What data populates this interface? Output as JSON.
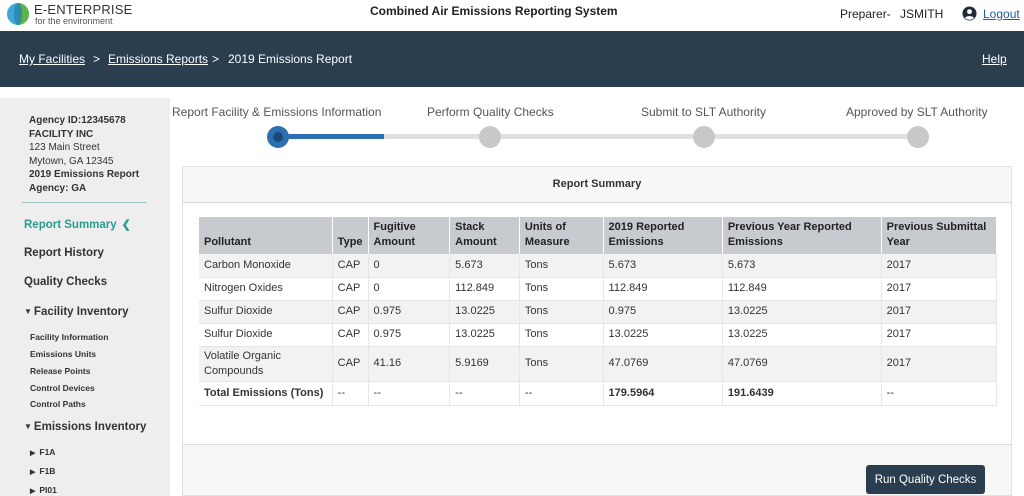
{
  "header": {
    "brand_name": "E-ENTERPRISE",
    "brand_sub": "for the environment",
    "app_title": "Combined Air Emissions Reporting System",
    "preparer_label": "Preparer-",
    "preparer_name": "JSMITH",
    "logout_label": "Logout"
  },
  "breadcrumb": {
    "items": [
      "My Facilities",
      "Emissions Reports",
      "2019 Emissions Report"
    ],
    "separator": ">",
    "help_label": "Help"
  },
  "sidebar": {
    "agency_id": "Agency ID:12345678",
    "facility_name": "FACILITY INC",
    "address_line1": "123 Main Street",
    "address_line2": "Mytown, GA 12345",
    "report_name": "2019 Emissions Report",
    "agency": "Agency: GA",
    "items": [
      {
        "label": "Report Summary",
        "active": true
      },
      {
        "label": "Report History"
      },
      {
        "label": "Quality Checks"
      }
    ],
    "facility_inventory": {
      "label": "Facility Inventory",
      "children": [
        "Facility Information",
        "Emissions Units",
        "Release Points",
        "Control Devices",
        "Control Paths"
      ]
    },
    "emissions_inventory": {
      "label": "Emissions Inventory",
      "children": [
        "F1A",
        "F1B",
        "PI01"
      ]
    }
  },
  "stepper": {
    "steps": [
      "Report Facility & Emissions Information",
      "Perform Quality Checks",
      "Submit to SLT Authority",
      "Approved by SLT Authority"
    ],
    "current_step": 1
  },
  "summary": {
    "title": "Report Summary",
    "columns": [
      "Pollutant",
      "Type",
      "Fugitive Amount",
      "Stack Amount",
      "Units of Measure",
      "2019 Reported Emissions",
      "Previous Year Reported Emissions",
      "Previous Submittal Year"
    ],
    "rows": [
      [
        "Carbon Monoxide",
        "CAP",
        "0",
        "5.673",
        "Tons",
        "5.673",
        "5.673",
        "2017"
      ],
      [
        "Nitrogen Oxides",
        "CAP",
        "0",
        "112.849",
        "Tons",
        "112.849",
        "112.849",
        "2017"
      ],
      [
        "Sulfur Dioxide",
        "CAP",
        "0.975",
        "13.0225",
        "Tons",
        "0.975",
        "13.0225",
        "2017"
      ],
      [
        "Sulfur Dioxide",
        "CAP",
        "0.975",
        "13.0225",
        "Tons",
        "13.0225",
        "13.0225",
        "2017"
      ],
      [
        "Volatile Organic Compounds",
        "CAP",
        "41.16",
        "5.9169",
        "Tons",
        "47.0769",
        "47.0769",
        "2017"
      ]
    ],
    "total_row": [
      "Total Emissions (Tons)",
      "--",
      "--",
      "--",
      "--",
      "179.5964",
      "191.6439",
      "--"
    ],
    "run_button_label": "Run Quality Checks"
  },
  "colors": {
    "nav_bg": "#2b3e50",
    "accent_teal": "#2a9d8f",
    "step_blue": "#2e6fb0",
    "link_blue": "#1a5ea8"
  }
}
